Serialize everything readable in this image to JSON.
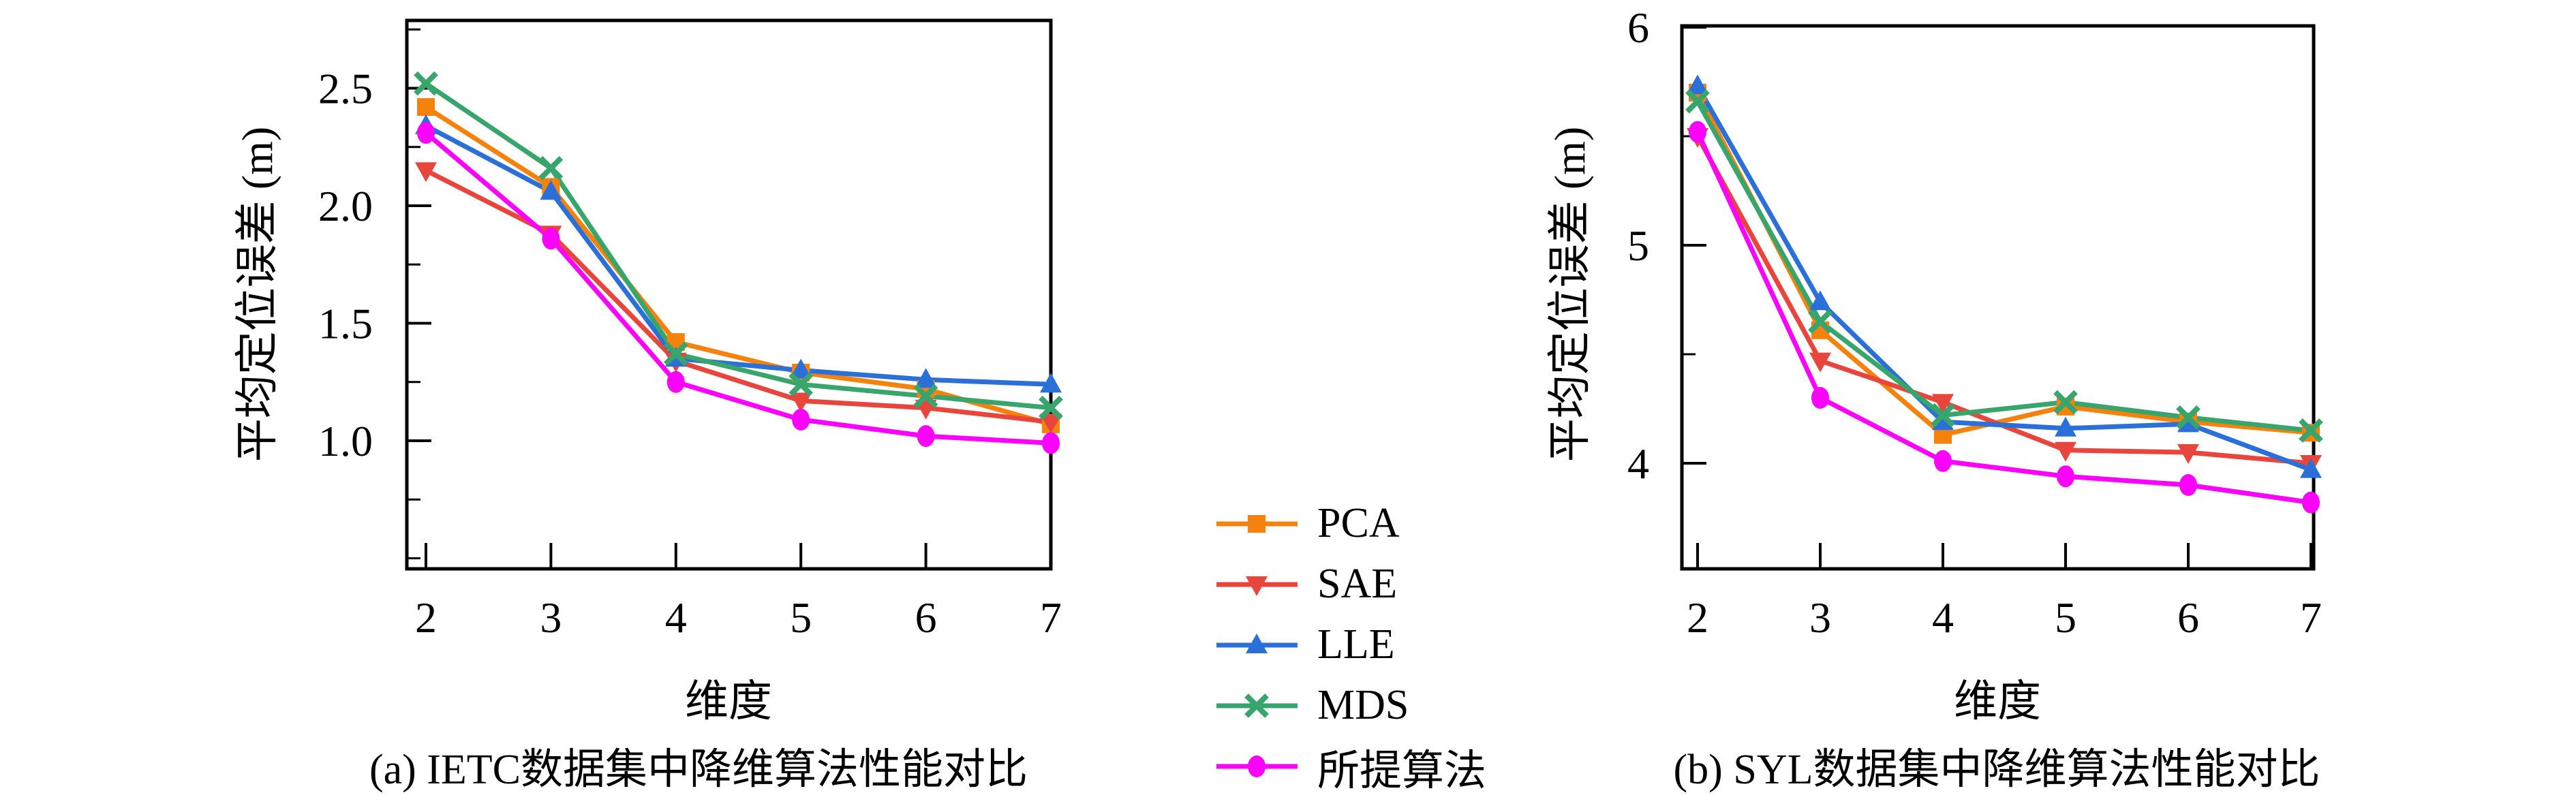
{
  "figure_ylabel": "平均定位误差 (m)",
  "legend": {
    "position": "center-between-charts",
    "entries": [
      {
        "label": "PCA",
        "color": "#F5820C",
        "marker": "square"
      },
      {
        "label": "SAE",
        "color": "#E8463C",
        "marker": "triangle-down"
      },
      {
        "label": "LLE",
        "color": "#2B6FD8",
        "marker": "triangle-up"
      },
      {
        "label": "MDS",
        "color": "#37A56C",
        "marker": "x"
      },
      {
        "label": "所提算法",
        "color": "#FB02FB",
        "marker": "circle"
      }
    ]
  },
  "chart_data": [
    {
      "type": "line",
      "title": "(a) IETC数据集中降维算法性能对比",
      "xlabel": "维度",
      "ylabel": "平均定位误差 (m)",
      "x": [
        2,
        3,
        4,
        5,
        6,
        7
      ],
      "xtick_labels": [
        "2",
        "3",
        "4",
        "5",
        "6",
        "7"
      ],
      "ylim": [
        0.45,
        2.79
      ],
      "yticks": [
        2.5,
        2.0,
        1.5,
        1.0
      ],
      "ytick_labels": [
        "2.5",
        "2.0",
        "1.5",
        "1.0"
      ],
      "yticks_minor": [
        2.75,
        2.25,
        1.75,
        1.25,
        0.75,
        0.5
      ],
      "grid": false,
      "legend_position": "outside-right-shared",
      "series": [
        {
          "name": "PCA",
          "values": [
            2.42,
            2.08,
            1.42,
            1.29,
            1.22,
            1.07
          ]
        },
        {
          "name": "SAE",
          "values": [
            2.15,
            1.88,
            1.34,
            1.17,
            1.14,
            1.08
          ]
        },
        {
          "name": "LLE",
          "values": [
            2.34,
            2.06,
            1.35,
            1.3,
            1.26,
            1.24
          ]
        },
        {
          "name": "MDS",
          "values": [
            2.52,
            2.16,
            1.37,
            1.24,
            1.19,
            1.14
          ]
        },
        {
          "name": "所提算法",
          "values": [
            2.31,
            1.86,
            1.25,
            1.09,
            1.02,
            0.99
          ]
        }
      ]
    },
    {
      "type": "line",
      "title": "(b) SYL数据集中降维算法性能对比",
      "xlabel": "维度",
      "ylabel": "平均定位误差 (m)",
      "x": [
        2,
        3,
        4,
        5,
        6,
        7
      ],
      "xtick_labels": [
        "2",
        "3",
        "4",
        "5",
        "6",
        "7"
      ],
      "ylim": [
        3.52,
        6.02
      ],
      "yticks": [
        6,
        5,
        4
      ],
      "ytick_labels": [
        "6",
        "5",
        "4"
      ],
      "yticks_minor": [
        5.5,
        4.5
      ],
      "grid": false,
      "legend_position": "outside-left-shared",
      "series": [
        {
          "name": "PCA",
          "values": [
            5.7,
            4.61,
            4.13,
            4.26,
            4.19,
            4.14
          ]
        },
        {
          "name": "SAE",
          "values": [
            5.5,
            4.47,
            4.28,
            4.06,
            4.05,
            4.0
          ]
        },
        {
          "name": "LLE",
          "values": [
            5.73,
            4.74,
            4.19,
            4.16,
            4.18,
            3.97
          ]
        },
        {
          "name": "MDS",
          "values": [
            5.66,
            4.65,
            4.22,
            4.28,
            4.21,
            4.15
          ]
        },
        {
          "name": "所提算法",
          "values": [
            5.52,
            4.3,
            4.01,
            3.94,
            3.9,
            3.82
          ]
        }
      ]
    }
  ]
}
